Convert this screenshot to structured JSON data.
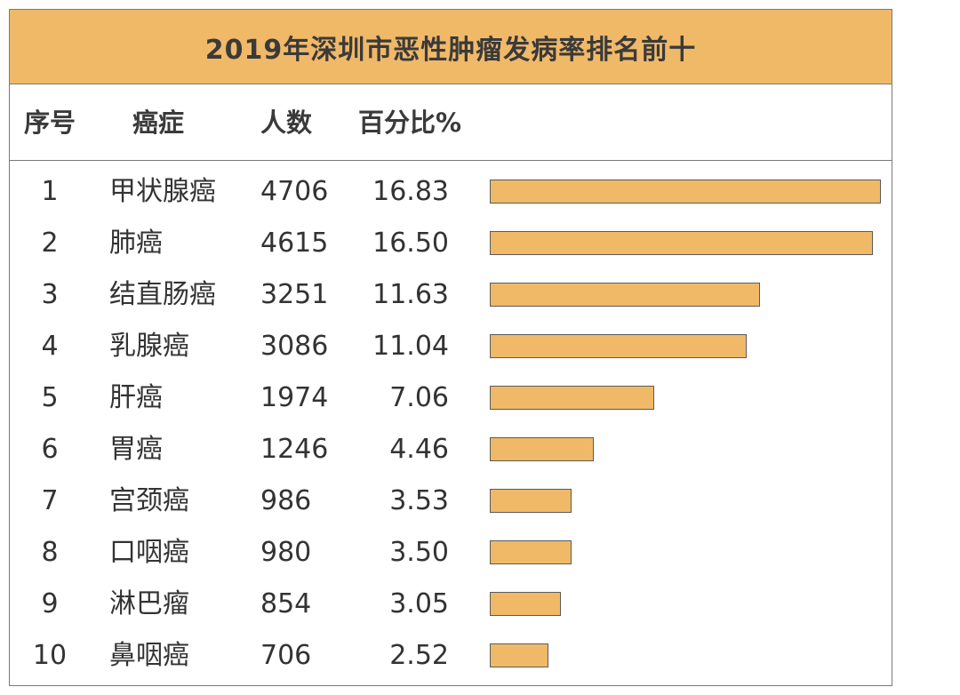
{
  "chart_data": {
    "type": "bar",
    "title": "2019年深圳市恶性肿瘤发病率排名前十",
    "columns": [
      "序号",
      "癌症",
      "人数",
      "百分比%"
    ],
    "rows": [
      {
        "rank": "1",
        "name": "甲状腺癌",
        "count": "4706",
        "percent": "16.83"
      },
      {
        "rank": "2",
        "name": "肺癌",
        "count": "4615",
        "percent": "16.50"
      },
      {
        "rank": "3",
        "name": "结直肠癌",
        "count": "3251",
        "percent": "11.63"
      },
      {
        "rank": "4",
        "name": "乳腺癌",
        "count": "3086",
        "percent": "11.04"
      },
      {
        "rank": "5",
        "name": "肝癌",
        "count": "1974",
        "percent": "7.06"
      },
      {
        "rank": "6",
        "name": "胃癌",
        "count": "1246",
        "percent": "4.46"
      },
      {
        "rank": "7",
        "name": "宫颈癌",
        "count": "986",
        "percent": "3.53"
      },
      {
        "rank": "8",
        "name": "口咽癌",
        "count": "980",
        "percent": "3.50"
      },
      {
        "rank": "9",
        "name": "淋巴瘤",
        "count": "854",
        "percent": "3.05"
      },
      {
        "rank": "10",
        "name": "鼻咽癌",
        "count": "706",
        "percent": "2.52"
      }
    ],
    "bar_value": "percent",
    "bar_color": "#f0b968",
    "header_color": "#f0b968"
  }
}
